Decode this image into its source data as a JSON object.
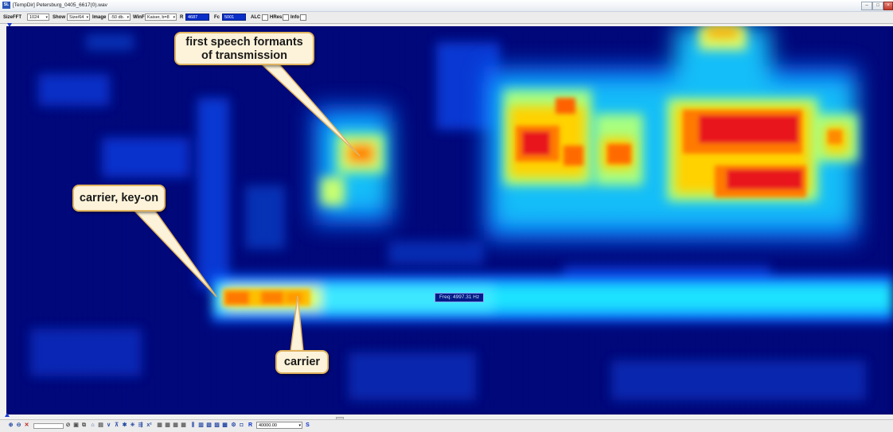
{
  "window": {
    "title": "[TempDir] Petersburg_0405_6617(0).wav",
    "app_icon_text": "SL",
    "buttons": [
      "min",
      "max",
      "close"
    ]
  },
  "toolbar": {
    "size_fft": {
      "label": "SizeFFT",
      "value": "1024"
    },
    "show": {
      "label": "Show",
      "value": "Size/64"
    },
    "image": {
      "label": "Image",
      "value": "-50 db."
    },
    "winf": {
      "label": "WinF",
      "value": "Kaiser, b=8"
    },
    "r": {
      "label": "R",
      "value": "4687"
    },
    "fc": {
      "label": "Fc",
      "value": "5001"
    },
    "alc": {
      "label": "ALC",
      "checked": false
    },
    "hres": {
      "label": "HRes",
      "checked": false
    },
    "info": {
      "label": "Info",
      "checked": false
    }
  },
  "spectrogram": {
    "colormap": [
      "#00006b",
      "#0019c8",
      "#0a6cff",
      "#18d8ff",
      "#c8ff7a",
      "#ffe100",
      "#ff7a00",
      "#e0101a"
    ],
    "frequency_readout": "Freq: 4997.31 Hz"
  },
  "callouts": {
    "formants": [
      "first speech formants",
      "of transmission"
    ],
    "keyon": "carrier, key-on",
    "carrier": "carrier"
  },
  "bottombar": {
    "zoom_value": "40000.00",
    "icons": [
      "zoom-in-icon",
      "zoom-out-icon",
      "delete-icon",
      "stop-icon",
      "save-icon",
      "copy-icon",
      "home-icon",
      "chart-icon",
      "wave-icon",
      "filter-icon",
      "bar-icon",
      "grid-icon",
      "settings-icon",
      "plus-icon",
      "info-icon",
      "scale-icon"
    ],
    "end_label": "S"
  }
}
